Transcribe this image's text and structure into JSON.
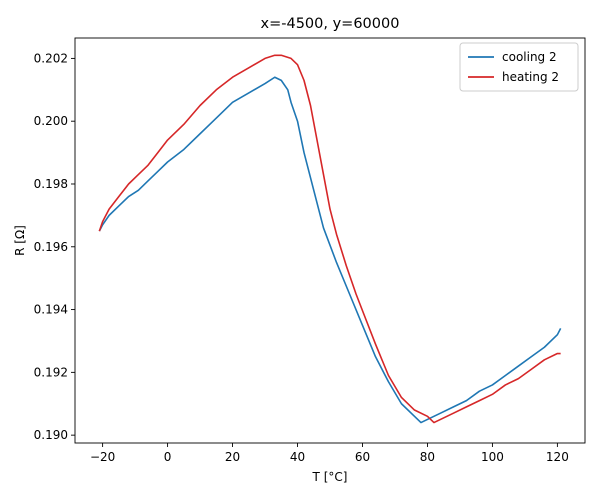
{
  "chart_data": {
    "type": "line",
    "title": "x=-4500, y=60000",
    "xlabel": "T [°C]",
    "ylabel": "R [Ω]",
    "xlim": [
      -28.5,
      128.5
    ],
    "ylim": [
      0.18975,
      0.20265
    ],
    "xticks": [
      -20,
      0,
      20,
      40,
      60,
      80,
      100,
      120
    ],
    "yticks": [
      0.19,
      0.192,
      0.194,
      0.196,
      0.198,
      0.2,
      0.202
    ],
    "ytick_labels": [
      "0.190",
      "0.192",
      "0.194",
      "0.196",
      "0.198",
      "0.200",
      "0.202"
    ],
    "grid": false,
    "legend": "upper right",
    "series": [
      {
        "name": "cooling 2",
        "color": "#1f77b4",
        "x": [
          -21,
          -20,
          -18,
          -15,
          -12,
          -9,
          -6,
          -3,
          0,
          5,
          10,
          15,
          20,
          25,
          30,
          33,
          35,
          37,
          38,
          40,
          42,
          45,
          48,
          52,
          56,
          60,
          64,
          68,
          72,
          76,
          78,
          80,
          84,
          88,
          92,
          96,
          100,
          104,
          108,
          112,
          116,
          120,
          121
        ],
        "y": [
          0.1965,
          0.1967,
          0.197,
          0.1973,
          0.1976,
          0.1978,
          0.1981,
          0.1984,
          0.1987,
          0.1991,
          0.1996,
          0.2001,
          0.2006,
          0.2009,
          0.2012,
          0.2014,
          0.2013,
          0.201,
          0.2006,
          0.2,
          0.199,
          0.1978,
          0.1966,
          0.1955,
          0.1945,
          0.1935,
          0.1925,
          0.1917,
          0.191,
          0.1906,
          0.1904,
          0.1905,
          0.1907,
          0.1909,
          0.1911,
          0.1914,
          0.1916,
          0.1919,
          0.1922,
          0.1925,
          0.1928,
          0.1932,
          0.1934
        ]
      },
      {
        "name": "heating 2",
        "color": "#d62728",
        "x": [
          -21,
          -20,
          -18,
          -15,
          -12,
          -9,
          -6,
          -3,
          0,
          5,
          10,
          15,
          20,
          25,
          30,
          33,
          35,
          38,
          40,
          42,
          44,
          46,
          48,
          50,
          52,
          55,
          58,
          61,
          64,
          68,
          72,
          76,
          80,
          82,
          84,
          88,
          92,
          96,
          100,
          104,
          108,
          112,
          116,
          120,
          121
        ],
        "y": [
          0.1965,
          0.1968,
          0.1972,
          0.1976,
          0.198,
          0.1983,
          0.1986,
          0.199,
          0.1994,
          0.1999,
          0.2005,
          0.201,
          0.2014,
          0.2017,
          0.202,
          0.2021,
          0.2021,
          0.202,
          0.2018,
          0.2013,
          0.2005,
          0.1994,
          0.1983,
          0.1972,
          0.1964,
          0.1954,
          0.1945,
          0.1937,
          0.1929,
          0.1919,
          0.1912,
          0.1908,
          0.1906,
          0.1904,
          0.1905,
          0.1907,
          0.1909,
          0.1911,
          0.1913,
          0.1916,
          0.1918,
          0.1921,
          0.1924,
          0.1926,
          0.1926
        ]
      }
    ]
  }
}
